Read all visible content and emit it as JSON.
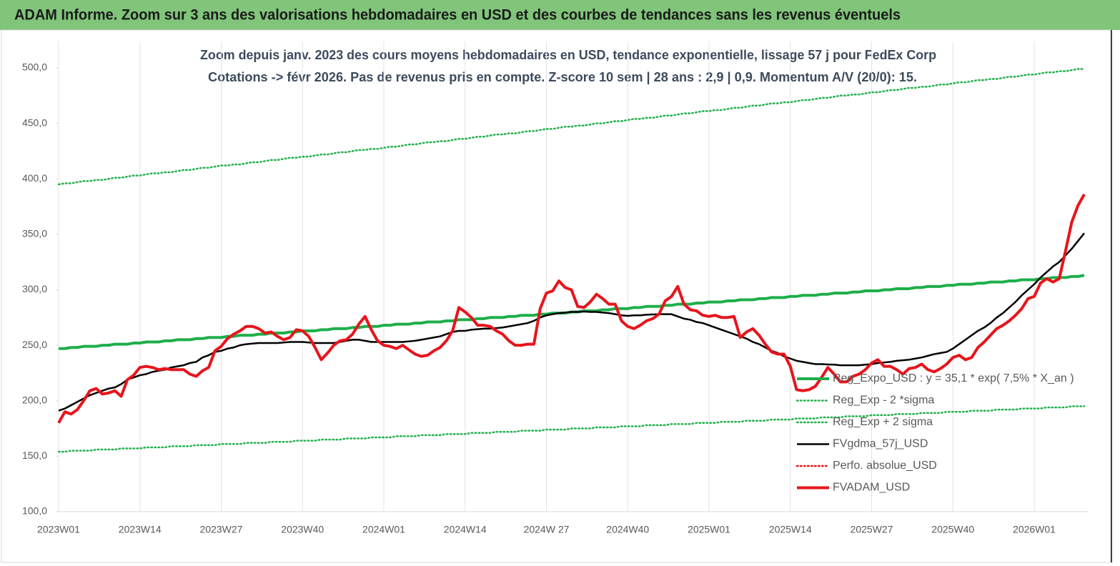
{
  "chart_data": {
    "type": "line",
    "title": "ADAM Informe. Zoom sur 3 ans des valorisations hebdomadaires en USD et des courbes de tendances sans les revenus éventuels",
    "subtitle": [
      "Zoom depuis janv. 2023 des cours moyens hebdomadaires en USD, tendance exponentielle, lissage 57 j pour FedEx Corp",
      "Cotations -> févr 2026.  Pas de revenus pris en compte. Z-score 10 sem  | 28 ans : 2,9  | 0,9. Momentum A/V (20/0): 15."
    ],
    "categories": [
      "2023W01",
      null,
      null,
      null,
      null,
      null,
      null,
      null,
      null,
      null,
      null,
      null,
      null,
      "2023W14",
      null,
      null,
      null,
      null,
      null,
      null,
      null,
      null,
      null,
      null,
      null,
      null,
      "2023W27",
      null,
      null,
      null,
      null,
      null,
      null,
      null,
      null,
      null,
      null,
      null,
      null,
      "2023W40",
      null,
      null,
      null,
      null,
      null,
      null,
      null,
      null,
      null,
      null,
      null,
      null,
      "2024W01",
      null,
      null,
      null,
      null,
      null,
      null,
      null,
      null,
      null,
      null,
      null,
      null,
      "2024W14",
      null,
      null,
      null,
      null,
      null,
      null,
      null,
      null,
      null,
      null,
      null,
      null,
      "2024W 27",
      null,
      null,
      null,
      null,
      null,
      null,
      null,
      null,
      null,
      null,
      null,
      null,
      "2024W40",
      null,
      null,
      null,
      null,
      null,
      null,
      null,
      null,
      null,
      null,
      null,
      null,
      "2025W01",
      null,
      null,
      null,
      null,
      null,
      null,
      null,
      null,
      null,
      null,
      null,
      null,
      "2025W14",
      null,
      null,
      null,
      null,
      null,
      null,
      null,
      null,
      null,
      null,
      null,
      null,
      "2025W27",
      null,
      null,
      null,
      null,
      null,
      null,
      null,
      null,
      null,
      null,
      null,
      null,
      "2025W40",
      null,
      null,
      null,
      null,
      null,
      null,
      null,
      null,
      null,
      null,
      null,
      null,
      "2026W01",
      null,
      null,
      null,
      null,
      null,
      null,
      null,
      null
    ],
    "series": [
      {
        "name": "Reg_Expo_USD : y = 35,1 * exp( 7,5% *  X_an )",
        "color": "#1fae4b",
        "style": "thick",
        "values": [
          247,
          247,
          248,
          248,
          249,
          249,
          249,
          250,
          250,
          251,
          251,
          251,
          252,
          252,
          253,
          253,
          253,
          254,
          254,
          255,
          255,
          255,
          256,
          256,
          257,
          257,
          257,
          258,
          258,
          259,
          259,
          259,
          260,
          260,
          261,
          261,
          261,
          262,
          262,
          263,
          263,
          263,
          264,
          264,
          265,
          265,
          265,
          266,
          266,
          267,
          267,
          267,
          268,
          268,
          269,
          269,
          269,
          270,
          270,
          271,
          271,
          271,
          272,
          272,
          273,
          273,
          273,
          274,
          274,
          275,
          275,
          275,
          276,
          276,
          277,
          277,
          277,
          278,
          278,
          279,
          279,
          279,
          280,
          280,
          281,
          281,
          281,
          282,
          282,
          283,
          283,
          283,
          284,
          284,
          285,
          285,
          285,
          286,
          286,
          287,
          287,
          287,
          288,
          288,
          289,
          289,
          289,
          290,
          290,
          291,
          291,
          291,
          292,
          292,
          293,
          293,
          293,
          294,
          294,
          295,
          295,
          295,
          296,
          296,
          297,
          297,
          297,
          298,
          298,
          299,
          299,
          299,
          300,
          300,
          301,
          301,
          301,
          302,
          302,
          303,
          303,
          303,
          304,
          304,
          305,
          305,
          305,
          306,
          306,
          307,
          307,
          307,
          308,
          308,
          309,
          309,
          309,
          310,
          310,
          311,
          311,
          311,
          312,
          312,
          313
        ]
      },
      {
        "name": "Reg_Exp - 2 *sigma",
        "color": "#22b14c",
        "style": "dotted",
        "values": [
          154,
          154,
          155,
          155,
          155,
          155,
          156,
          156,
          156,
          156,
          157,
          157,
          157,
          157,
          158,
          158,
          158,
          158,
          159,
          159,
          159,
          159,
          160,
          160,
          160,
          160,
          161,
          161,
          161,
          161,
          162,
          162,
          162,
          162,
          163,
          163,
          163,
          163,
          164,
          164,
          164,
          164,
          165,
          165,
          165,
          165,
          166,
          166,
          166,
          166,
          167,
          167,
          167,
          167,
          168,
          168,
          168,
          168,
          169,
          169,
          169,
          169,
          170,
          170,
          170,
          170,
          171,
          171,
          171,
          171,
          172,
          172,
          172,
          172,
          173,
          173,
          173,
          173,
          174,
          174,
          174,
          174,
          175,
          175,
          175,
          175,
          176,
          176,
          176,
          176,
          177,
          177,
          177,
          177,
          178,
          178,
          178,
          178,
          179,
          179,
          179,
          179,
          180,
          180,
          180,
          180,
          181,
          181,
          181,
          181,
          182,
          182,
          182,
          182,
          183,
          183,
          183,
          183,
          184,
          184,
          184,
          184,
          185,
          185,
          185,
          185,
          186,
          186,
          186,
          186,
          187,
          187,
          187,
          187,
          188,
          188,
          188,
          188,
          189,
          189,
          189,
          189,
          190,
          190,
          190,
          190,
          191,
          191,
          191,
          191,
          192,
          192,
          192,
          192,
          193,
          193,
          193,
          193,
          194,
          194,
          194,
          194,
          195,
          195,
          195
        ]
      },
      {
        "name": "Reg_Exp + 2 sigma",
        "color": "#22b14c",
        "style": "dotted",
        "values": [
          395,
          396,
          396,
          397,
          398,
          398,
          399,
          399,
          400,
          401,
          401,
          402,
          403,
          403,
          404,
          405,
          405,
          406,
          406,
          407,
          408,
          408,
          409,
          410,
          410,
          411,
          412,
          412,
          413,
          413,
          414,
          415,
          415,
          416,
          417,
          417,
          418,
          419,
          419,
          420,
          420,
          421,
          422,
          422,
          423,
          424,
          424,
          425,
          426,
          426,
          427,
          427,
          428,
          429,
          429,
          430,
          431,
          431,
          432,
          433,
          433,
          434,
          434,
          435,
          436,
          436,
          437,
          438,
          438,
          439,
          440,
          440,
          441,
          441,
          442,
          443,
          443,
          444,
          445,
          445,
          446,
          447,
          447,
          448,
          448,
          449,
          450,
          450,
          451,
          452,
          452,
          453,
          454,
          454,
          455,
          455,
          456,
          457,
          457,
          458,
          459,
          459,
          460,
          461,
          461,
          462,
          462,
          463,
          464,
          464,
          465,
          466,
          466,
          467,
          468,
          468,
          469,
          469,
          470,
          471,
          471,
          472,
          473,
          473,
          474,
          475,
          475,
          476,
          476,
          477,
          478,
          478,
          479,
          480,
          480,
          481,
          482,
          482,
          483,
          483,
          484,
          485,
          485,
          486,
          487,
          487,
          488,
          489,
          489,
          490,
          490,
          491,
          492,
          492,
          493,
          494,
          494,
          495,
          496,
          496,
          497,
          497,
          498,
          499,
          499
        ]
      },
      {
        "name": "FVgdma_57j_USD",
        "color": "#000000",
        "style": "solid",
        "values": [
          191,
          193,
          196,
          199,
          202,
          205,
          207,
          209,
          211,
          212,
          215,
          219,
          221,
          223,
          224,
          226,
          227,
          228,
          230,
          231,
          232,
          234,
          235,
          239,
          241,
          244,
          245,
          247,
          248,
          250,
          251,
          251.5,
          252,
          252,
          252,
          252,
          252.5,
          253,
          253,
          253,
          252.5,
          252,
          252,
          252,
          252,
          253,
          254,
          255,
          255,
          254,
          253,
          253,
          253,
          253,
          253,
          253,
          253.5,
          254,
          255,
          256,
          257,
          258,
          260,
          262,
          263,
          263,
          264,
          264.5,
          265,
          265,
          265.5,
          266,
          267,
          268,
          269,
          270,
          272,
          275,
          277,
          278,
          279,
          279.5,
          280,
          280,
          280.4,
          280,
          280,
          279.5,
          279,
          278,
          277,
          276.5,
          277,
          277,
          277.5,
          277.8,
          278,
          278,
          278,
          276,
          274,
          273,
          271,
          270,
          268,
          266,
          264,
          262,
          260,
          258,
          256,
          253,
          251,
          248,
          245,
          243,
          240,
          238,
          236,
          235,
          234,
          233,
          233,
          232.7,
          232.5,
          232,
          232,
          232,
          232,
          232.5,
          233,
          234,
          234.5,
          235,
          236,
          236.5,
          237,
          238,
          239,
          240.5,
          242,
          243,
          244,
          247,
          251,
          255,
          259,
          263,
          266,
          270,
          275,
          279,
          284,
          289,
          295,
          300,
          305,
          311,
          316,
          321,
          325,
          331,
          337,
          344,
          351
        ]
      },
      {
        "name": "Perfo. absolue_USD",
        "color": "#e8141b",
        "style": "dotted",
        "values": [
          null,
          null,
          null,
          null,
          null,
          null,
          null,
          null,
          null,
          null,
          null,
          null,
          null,
          null,
          null,
          null,
          null,
          null,
          null,
          null,
          null,
          null,
          null,
          null,
          null,
          null,
          null,
          null,
          null,
          null,
          null,
          null,
          null,
          null,
          null,
          null,
          null,
          null,
          null,
          null,
          null,
          null,
          null,
          null,
          null,
          null,
          null,
          null,
          null,
          null,
          null,
          null,
          null,
          null,
          null,
          null,
          null,
          null,
          null,
          null,
          null,
          null,
          null,
          null,
          null,
          null,
          null,
          null,
          null,
          null,
          null,
          null,
          null,
          null,
          null,
          null,
          null,
          null,
          null,
          null,
          null,
          null,
          null,
          null,
          null,
          null,
          null,
          null,
          null,
          null,
          null,
          null,
          null,
          null,
          null,
          null,
          null,
          null,
          null,
          null,
          null,
          null,
          null,
          null,
          null,
          null,
          null,
          null,
          null,
          null,
          null,
          null,
          null,
          null,
          null,
          null,
          null,
          null,
          null,
          null,
          null,
          null,
          null,
          null,
          null,
          null,
          null,
          null,
          null,
          null,
          null,
          null,
          null,
          null,
          null,
          null,
          null,
          null,
          null,
          null,
          null,
          null,
          null,
          null,
          null,
          null,
          null,
          null,
          null,
          null,
          null,
          null,
          null,
          null,
          null,
          null,
          null,
          null,
          null,
          null,
          null,
          null,
          null,
          null,
          null
        ]
      },
      {
        "name": "FVADAM_USD",
        "color": "#e8141b",
        "style": "thick",
        "values": [
          180,
          190,
          188,
          192,
          200,
          209,
          211,
          206,
          207,
          209,
          204,
          219,
          223,
          230,
          231,
          230,
          228,
          229,
          228,
          228,
          228,
          224,
          222,
          227,
          230,
          245,
          249,
          256,
          260,
          263,
          267,
          267,
          265,
          261,
          262,
          258,
          255,
          257,
          264,
          263,
          258,
          248,
          237,
          243,
          250,
          254,
          255,
          260,
          269,
          276,
          264,
          254,
          250,
          249,
          247,
          250,
          246,
          242,
          240,
          241,
          245,
          248,
          254,
          263,
          284,
          280,
          275,
          268,
          268,
          267,
          263,
          260,
          254,
          250,
          250,
          251,
          251,
          283,
          297,
          299,
          308,
          302,
          300,
          285,
          284,
          289,
          296,
          292,
          287,
          287,
          272,
          267,
          265,
          268,
          272,
          274,
          278,
          290,
          294,
          303,
          287,
          282,
          281,
          277,
          276,
          277,
          275,
          275,
          276,
          257,
          262,
          265,
          259,
          251,
          244,
          242,
          242,
          231,
          210,
          209,
          210,
          213,
          221,
          230,
          224,
          217,
          217,
          222,
          224,
          228,
          234,
          237,
          231,
          231,
          228,
          224,
          229,
          230,
          233,
          228,
          226,
          229,
          233,
          239,
          241,
          237,
          239,
          248,
          253,
          259,
          265,
          268,
          272,
          277,
          283,
          292,
          294,
          306,
          310,
          307,
          310,
          335,
          361,
          376,
          386
        ]
      }
    ],
    "ylim": [
      100,
      500
    ],
    "yticks": [
      {
        "value": 100,
        "label": "100,0"
      },
      {
        "value": 150,
        "label": "150,0"
      },
      {
        "value": 200,
        "label": "200,0"
      },
      {
        "value": 250,
        "label": "250,0"
      },
      {
        "value": 300,
        "label": "300,0"
      },
      {
        "value": 350,
        "label": "350,0"
      },
      {
        "value": 400,
        "label": "400,0"
      },
      {
        "value": 450,
        "label": "450,0"
      },
      {
        "value": 500,
        "label": "500,0"
      }
    ],
    "xgrid": true,
    "legend": "right"
  }
}
